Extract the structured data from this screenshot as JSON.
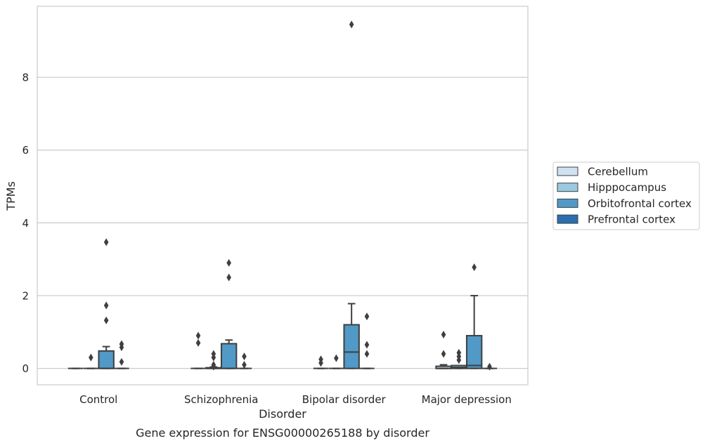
{
  "chart_data": {
    "type": "box",
    "title": "",
    "caption": "Gene expression for ENSG00000265188 by disorder",
    "xlabel": "Disorder",
    "ylabel": "TPMs",
    "ylim": [
      -0.45,
      9.95
    ],
    "yticks": [
      0,
      2,
      4,
      6,
      8
    ],
    "grid": "horizontal",
    "legend_position": "right-outside",
    "categories": [
      "Control",
      "Schizophrenia",
      "Bipolar disorder",
      "Major depression"
    ],
    "series": [
      {
        "name": "Cerebellum",
        "color": "#d0e2f1",
        "boxes": [
          {
            "q1": 0,
            "median": 0,
            "q3": 0,
            "whisker_low": 0,
            "whisker_high": 0,
            "outliers": []
          },
          {
            "q1": 0,
            "median": 0,
            "q3": 0,
            "whisker_low": 0,
            "whisker_high": 0,
            "outliers": [
              0.9,
              0.7
            ]
          },
          {
            "q1": 0,
            "median": 0,
            "q3": 0,
            "whisker_low": 0,
            "whisker_high": 0,
            "outliers": [
              0.25,
              0.15
            ]
          },
          {
            "q1": 0,
            "median": 0,
            "q3": 0.06,
            "whisker_low": 0,
            "whisker_high": 0.1,
            "outliers": [
              0.93,
              0.4
            ]
          }
        ]
      },
      {
        "name": "Hipppocampus",
        "color": "#9ac9e0",
        "boxes": [
          {
            "q1": 0,
            "median": 0,
            "q3": 0,
            "whisker_low": 0,
            "whisker_high": 0,
            "outliers": [
              0.3
            ]
          },
          {
            "q1": 0,
            "median": 0,
            "q3": 0.02,
            "whisker_low": 0,
            "whisker_high": 0.04,
            "outliers": [
              0.4,
              0.3,
              0.1,
              0.05
            ]
          },
          {
            "q1": 0,
            "median": 0,
            "q3": 0,
            "whisker_low": 0,
            "whisker_high": 0,
            "outliers": [
              0.28
            ]
          },
          {
            "q1": 0,
            "median": 0.03,
            "q3": 0.08,
            "whisker_low": 0,
            "whisker_high": 0.08,
            "outliers": [
              0.43,
              0.33,
              0.23
            ]
          }
        ]
      },
      {
        "name": "Orbitofrontal cortex",
        "color": "#5199c7",
        "boxes": [
          {
            "q1": 0,
            "median": 0,
            "q3": 0.48,
            "whisker_low": 0,
            "whisker_high": 0.6,
            "outliers": [
              3.47,
              1.73,
              1.32
            ]
          },
          {
            "q1": 0,
            "median": 0,
            "q3": 0.68,
            "whisker_low": 0,
            "whisker_high": 0.78,
            "outliers": [
              2.9,
              2.5
            ]
          },
          {
            "q1": 0,
            "median": 0.45,
            "q3": 1.2,
            "whisker_low": 0,
            "whisker_high": 1.78,
            "outliers": [
              9.45
            ]
          },
          {
            "q1": 0,
            "median": 0.08,
            "q3": 0.9,
            "whisker_low": 0,
            "whisker_high": 2.0,
            "outliers": [
              2.78
            ]
          }
        ]
      },
      {
        "name": "Prefrontal cortex",
        "color": "#2a6fae",
        "boxes": [
          {
            "q1": 0,
            "median": 0,
            "q3": 0,
            "whisker_low": 0,
            "whisker_high": 0,
            "outliers": [
              0.67,
              0.58,
              0.18
            ]
          },
          {
            "q1": 0,
            "median": 0,
            "q3": 0,
            "whisker_low": 0,
            "whisker_high": 0,
            "outliers": [
              0.33,
              0.1
            ]
          },
          {
            "q1": 0,
            "median": 0,
            "q3": 0,
            "whisker_low": 0,
            "whisker_high": 0,
            "outliers": [
              1.43,
              0.65,
              0.4
            ]
          },
          {
            "q1": 0,
            "median": 0,
            "q3": 0,
            "whisker_low": 0,
            "whisker_high": 0,
            "outliers": [
              0.05
            ]
          }
        ]
      }
    ]
  }
}
